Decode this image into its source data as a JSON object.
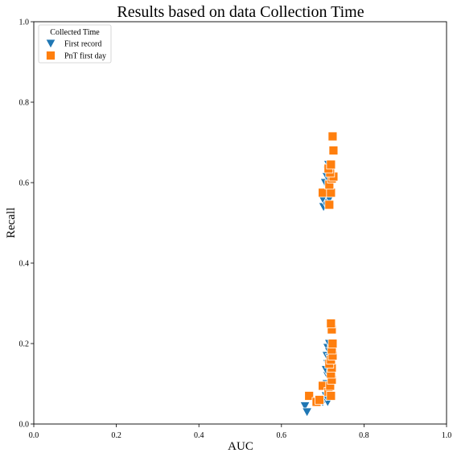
{
  "chart_data": {
    "type": "scatter",
    "title": "Results based on data Collection Time",
    "xlabel": "AUC",
    "ylabel": "Recall",
    "xlim": [
      0,
      1
    ],
    "ylim": [
      0,
      1
    ],
    "x_ticks": [
      "0.0",
      "0.2",
      "0.4",
      "0.6",
      "0.8",
      "1.0"
    ],
    "y_ticks": [
      "0.0",
      "0.2",
      "0.4",
      "0.6",
      "0.8",
      "1.0"
    ],
    "grid": false,
    "legend": {
      "title": "Collected Time",
      "placement": "top-left"
    },
    "series": [
      {
        "name": "First record",
        "marker": "triangle-down",
        "color": "#1f77b4",
        "points": [
          [
            0.657,
            0.045
          ],
          [
            0.662,
            0.03
          ],
          [
            0.7,
            0.055
          ],
          [
            0.712,
            0.055
          ],
          [
            0.715,
            0.08
          ],
          [
            0.708,
            0.07
          ],
          [
            0.71,
            0.1
          ],
          [
            0.712,
            0.12
          ],
          [
            0.708,
            0.135
          ],
          [
            0.712,
            0.15
          ],
          [
            0.71,
            0.17
          ],
          [
            0.712,
            0.19
          ],
          [
            0.716,
            0.2
          ],
          [
            0.718,
            0.165
          ],
          [
            0.714,
            0.145
          ],
          [
            0.716,
            0.18
          ],
          [
            0.702,
            0.54
          ],
          [
            0.706,
            0.55
          ],
          [
            0.7,
            0.56
          ],
          [
            0.708,
            0.575
          ],
          [
            0.712,
            0.585
          ],
          [
            0.706,
            0.6
          ],
          [
            0.71,
            0.615
          ],
          [
            0.712,
            0.63
          ],
          [
            0.714,
            0.645
          ],
          [
            0.716,
            0.56
          ],
          [
            0.718,
            0.59
          ],
          [
            0.716,
            0.625
          ]
        ]
      },
      {
        "name": "PnT first day",
        "marker": "square",
        "color": "#ff7f0e",
        "points": [
          [
            0.667,
            0.07
          ],
          [
            0.685,
            0.055
          ],
          [
            0.692,
            0.06
          ],
          [
            0.7,
            0.095
          ],
          [
            0.714,
            0.08
          ],
          [
            0.72,
            0.07
          ],
          [
            0.718,
            0.095
          ],
          [
            0.722,
            0.11
          ],
          [
            0.72,
            0.125
          ],
          [
            0.722,
            0.14
          ],
          [
            0.716,
            0.15
          ],
          [
            0.72,
            0.16
          ],
          [
            0.724,
            0.17
          ],
          [
            0.722,
            0.185
          ],
          [
            0.724,
            0.2
          ],
          [
            0.722,
            0.235
          ],
          [
            0.72,
            0.25
          ],
          [
            0.716,
            0.545
          ],
          [
            0.7,
            0.575
          ],
          [
            0.72,
            0.575
          ],
          [
            0.716,
            0.595
          ],
          [
            0.722,
            0.61
          ],
          [
            0.726,
            0.615
          ],
          [
            0.718,
            0.625
          ],
          [
            0.714,
            0.635
          ],
          [
            0.72,
            0.645
          ],
          [
            0.726,
            0.68
          ],
          [
            0.724,
            0.715
          ]
        ]
      }
    ]
  }
}
